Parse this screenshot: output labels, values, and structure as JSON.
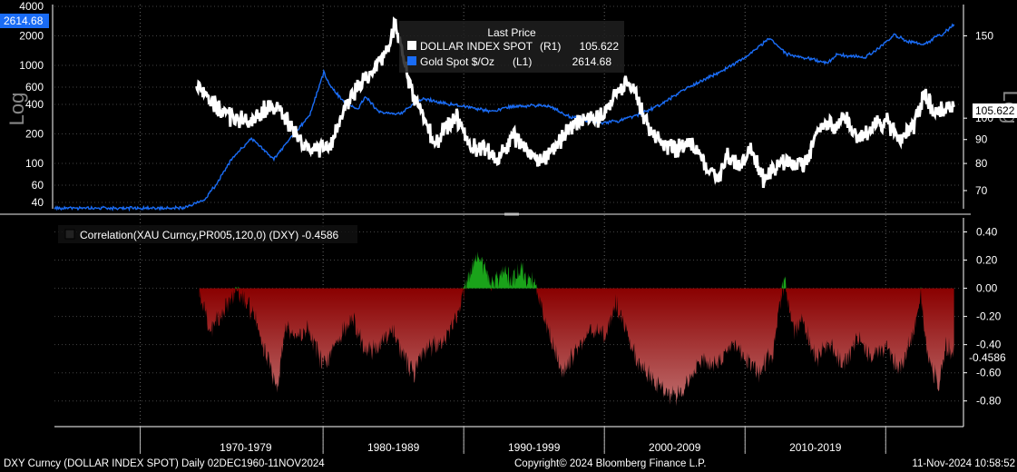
{
  "chart_data": [
    {
      "type": "line",
      "scale": "log",
      "legend": {
        "title": "Last Price",
        "placement": "top-center"
      },
      "series": [
        {
          "name": "DOLLAR INDEX SPOT",
          "axis": "(R1)",
          "last": "105.622",
          "color": "#ffffff",
          "points": [
            [
              1960.9,
              null
            ],
            [
              1967.0,
              null
            ],
            [
              1971.0,
              120
            ],
            [
              1973.0,
              101
            ],
            [
              1975.0,
              98
            ],
            [
              1976.0,
              106
            ],
            [
              1977.0,
              104
            ],
            [
              1978.5,
              88
            ],
            [
              1979.5,
              86
            ],
            [
              1980.5,
              87
            ],
            [
              1981.5,
              105
            ],
            [
              1982.5,
              117
            ],
            [
              1983.5,
              126
            ],
            [
              1984.5,
              138
            ],
            [
              1985.1,
              160
            ],
            [
              1985.8,
              130
            ],
            [
              1986.5,
              110
            ],
            [
              1987.5,
              95
            ],
            [
              1988.0,
              88
            ],
            [
              1988.7,
              96
            ],
            [
              1989.5,
              100
            ],
            [
              1990.5,
              88
            ],
            [
              1991.5,
              86
            ],
            [
              1992.5,
              82
            ],
            [
              1993.5,
              92
            ],
            [
              1994.5,
              86
            ],
            [
              1995.3,
              80
            ],
            [
              1996.5,
              86
            ],
            [
              1997.5,
              96
            ],
            [
              1998.5,
              99
            ],
            [
              1999.5,
              99
            ],
            [
              2000.5,
              110
            ],
            [
              2001.5,
              118
            ],
            [
              2002.0,
              116
            ],
            [
              2003.0,
              98
            ],
            [
              2004.0,
              88
            ],
            [
              2005.0,
              86
            ],
            [
              2006.0,
              88
            ],
            [
              2007.0,
              82
            ],
            [
              2008.0,
              73
            ],
            [
              2008.8,
              84
            ],
            [
              2009.5,
              78
            ],
            [
              2010.4,
              86
            ],
            [
              2011.3,
              74
            ],
            [
              2012.5,
              81
            ],
            [
              2013.5,
              80
            ],
            [
              2014.3,
              80
            ],
            [
              2014.9,
              90
            ],
            [
              2015.5,
              97
            ],
            [
              2016.5,
              97
            ],
            [
              2017.0,
              102
            ],
            [
              2018.0,
              90
            ],
            [
              2019.0,
              96
            ],
            [
              2020.1,
              99
            ],
            [
              2021.0,
              90
            ],
            [
              2022.0,
              96
            ],
            [
              2022.75,
              113
            ],
            [
              2023.5,
              102
            ],
            [
              2024.0,
              104
            ],
            [
              2024.86,
              105.622
            ]
          ]
        },
        {
          "name": "Gold Spot $/Oz",
          "axis": "(L1)",
          "last": "2614.68",
          "color": "#1a6cf5",
          "points": [
            [
              1960.9,
              35
            ],
            [
              1967.0,
              35
            ],
            [
              1970.0,
              35
            ],
            [
              1971.5,
              42
            ],
            [
              1972.5,
              64
            ],
            [
              1973.5,
              110
            ],
            [
              1974.9,
              180
            ],
            [
              1976.5,
              110
            ],
            [
              1978.0,
              210
            ],
            [
              1979.0,
              300
            ],
            [
              1980.05,
              850
            ],
            [
              1980.5,
              620
            ],
            [
              1981.5,
              420
            ],
            [
              1982.5,
              360
            ],
            [
              1983.0,
              480
            ],
            [
              1984.0,
              330
            ],
            [
              1985.5,
              320
            ],
            [
              1987.0,
              460
            ],
            [
              1988.0,
              430
            ],
            [
              1990.0,
              380
            ],
            [
              1992.0,
              340
            ],
            [
              1993.5,
              380
            ],
            [
              1996.0,
              390
            ],
            [
              1997.5,
              300
            ],
            [
              1999.5,
              260
            ],
            [
              2001.0,
              270
            ],
            [
              2002.5,
              320
            ],
            [
              2004.0,
              400
            ],
            [
              2006.0,
              600
            ],
            [
              2008.5,
              900
            ],
            [
              2010.0,
              1200
            ],
            [
              2011.7,
              1880
            ],
            [
              2013.0,
              1300
            ],
            [
              2015.9,
              1060
            ],
            [
              2016.5,
              1300
            ],
            [
              2018.5,
              1200
            ],
            [
              2019.5,
              1500
            ],
            [
              2020.6,
              2060
            ],
            [
              2021.5,
              1780
            ],
            [
              2022.8,
              1640
            ],
            [
              2023.5,
              1950
            ],
            [
              2024.0,
              2050
            ],
            [
              2024.5,
              2350
            ],
            [
              2024.86,
              2614.68
            ]
          ]
        }
      ],
      "left_axis_ticks": [
        40,
        60,
        100,
        200,
        400,
        600,
        1000,
        2000,
        4000
      ],
      "left_axis_tick_labels": [
        "40",
        "60",
        "100",
        "200",
        "400",
        "600",
        "1000",
        "2000",
        "4000"
      ],
      "left_axis_label": "Log",
      "right_axis_ticks": [
        70,
        80,
        90,
        100,
        150
      ],
      "right_axis_tick_labels": [
        "70",
        "80",
        "90",
        "100",
        "150"
      ],
      "right_axis_label": "Log",
      "left_tag": "2614.68",
      "right_tag": "105.622"
    },
    {
      "type": "area",
      "title": "Correlation(XAU Curncy,PR005,120,0) (DXY) -0.4586",
      "last": "-0.4586",
      "positive_color": "#1aa31a",
      "negative_color": "#8a0000",
      "points": [
        [
          1960.9,
          null
        ],
        [
          1967.0,
          null
        ],
        [
          1971.0,
          null
        ],
        [
          1971.2,
          -0.05
        ],
        [
          1972.0,
          -0.3
        ],
        [
          1972.6,
          -0.22
        ],
        [
          1973.3,
          -0.08
        ],
        [
          1973.9,
          -0.02
        ],
        [
          1974.6,
          -0.12
        ],
        [
          1975.1,
          -0.2
        ],
        [
          1976.0,
          -0.5
        ],
        [
          1976.8,
          -0.7
        ],
        [
          1977.3,
          -0.25
        ],
        [
          1978.0,
          -0.35
        ],
        [
          1979.0,
          -0.3
        ],
        [
          1980.0,
          -0.55
        ],
        [
          1981.0,
          -0.4
        ],
        [
          1982.0,
          -0.2
        ],
        [
          1983.0,
          -0.45
        ],
        [
          1984.0,
          -0.4
        ],
        [
          1985.0,
          -0.3
        ],
        [
          1986.0,
          -0.55
        ],
        [
          1986.5,
          -0.6
        ],
        [
          1987.0,
          -0.45
        ],
        [
          1988.0,
          -0.4
        ],
        [
          1989.0,
          -0.3
        ],
        [
          1989.6,
          -0.2
        ],
        [
          1990.0,
          -0.02
        ],
        [
          1990.5,
          0.1
        ],
        [
          1991.0,
          0.25
        ],
        [
          1991.5,
          0.12
        ],
        [
          1992.0,
          0.05
        ],
        [
          1993.0,
          0.1
        ],
        [
          1993.5,
          0.05
        ],
        [
          1994.0,
          0.15
        ],
        [
          1994.5,
          0.08
        ],
        [
          1995.0,
          0.05
        ],
        [
          1996.0,
          -0.3
        ],
        [
          1997.0,
          -0.6
        ],
        [
          1998.0,
          -0.45
        ],
        [
          1999.0,
          -0.3
        ],
        [
          2000.0,
          -0.35
        ],
        [
          2000.8,
          -0.1
        ],
        [
          2001.5,
          -0.3
        ],
        [
          2002.0,
          -0.45
        ],
        [
          2003.0,
          -0.6
        ],
        [
          2004.0,
          -0.7
        ],
        [
          2005.0,
          -0.78
        ],
        [
          2006.0,
          -0.65
        ],
        [
          2007.0,
          -0.5
        ],
        [
          2008.0,
          -0.55
        ],
        [
          2009.0,
          -0.4
        ],
        [
          2010.0,
          -0.5
        ],
        [
          2011.0,
          -0.6
        ],
        [
          2012.0,
          -0.45
        ],
        [
          2012.8,
          0.08
        ],
        [
          2013.0,
          -0.05
        ],
        [
          2013.5,
          -0.3
        ],
        [
          2014.0,
          -0.2
        ],
        [
          2015.0,
          -0.5
        ],
        [
          2016.0,
          -0.4
        ],
        [
          2017.0,
          -0.55
        ],
        [
          2018.0,
          -0.35
        ],
        [
          2019.0,
          -0.5
        ],
        [
          2020.0,
          -0.4
        ],
        [
          2021.0,
          -0.6
        ],
        [
          2022.0,
          -0.3
        ],
        [
          2022.5,
          -0.05
        ],
        [
          2023.0,
          -0.5
        ],
        [
          2023.8,
          -0.7
        ],
        [
          2024.3,
          -0.4
        ],
        [
          2024.86,
          -0.4586
        ]
      ],
      "right_axis_ticks": [
        -0.8,
        -0.6,
        -0.4,
        -0.2,
        0.0,
        0.2,
        0.4
      ],
      "right_axis_tick_labels": [
        "-0.80",
        "-0.60",
        "-0.40",
        "-0.20",
        "0.00",
        "0.20",
        "0.40"
      ],
      "right_tag": "-0.4586"
    }
  ],
  "x_axis": {
    "decade_labels": [
      "1970-1979",
      "1980-1989",
      "1990-1999",
      "2000-2009",
      "2010-2019"
    ]
  },
  "footer": {
    "left": "DXY Curncy (DOLLAR INDEX SPOT)  Daily 02DEC1960-11NOV2024",
    "center": "Copyright© 2024 Bloomberg Finance L.P.",
    "right": "11-Nov-2024 10:58:52"
  }
}
